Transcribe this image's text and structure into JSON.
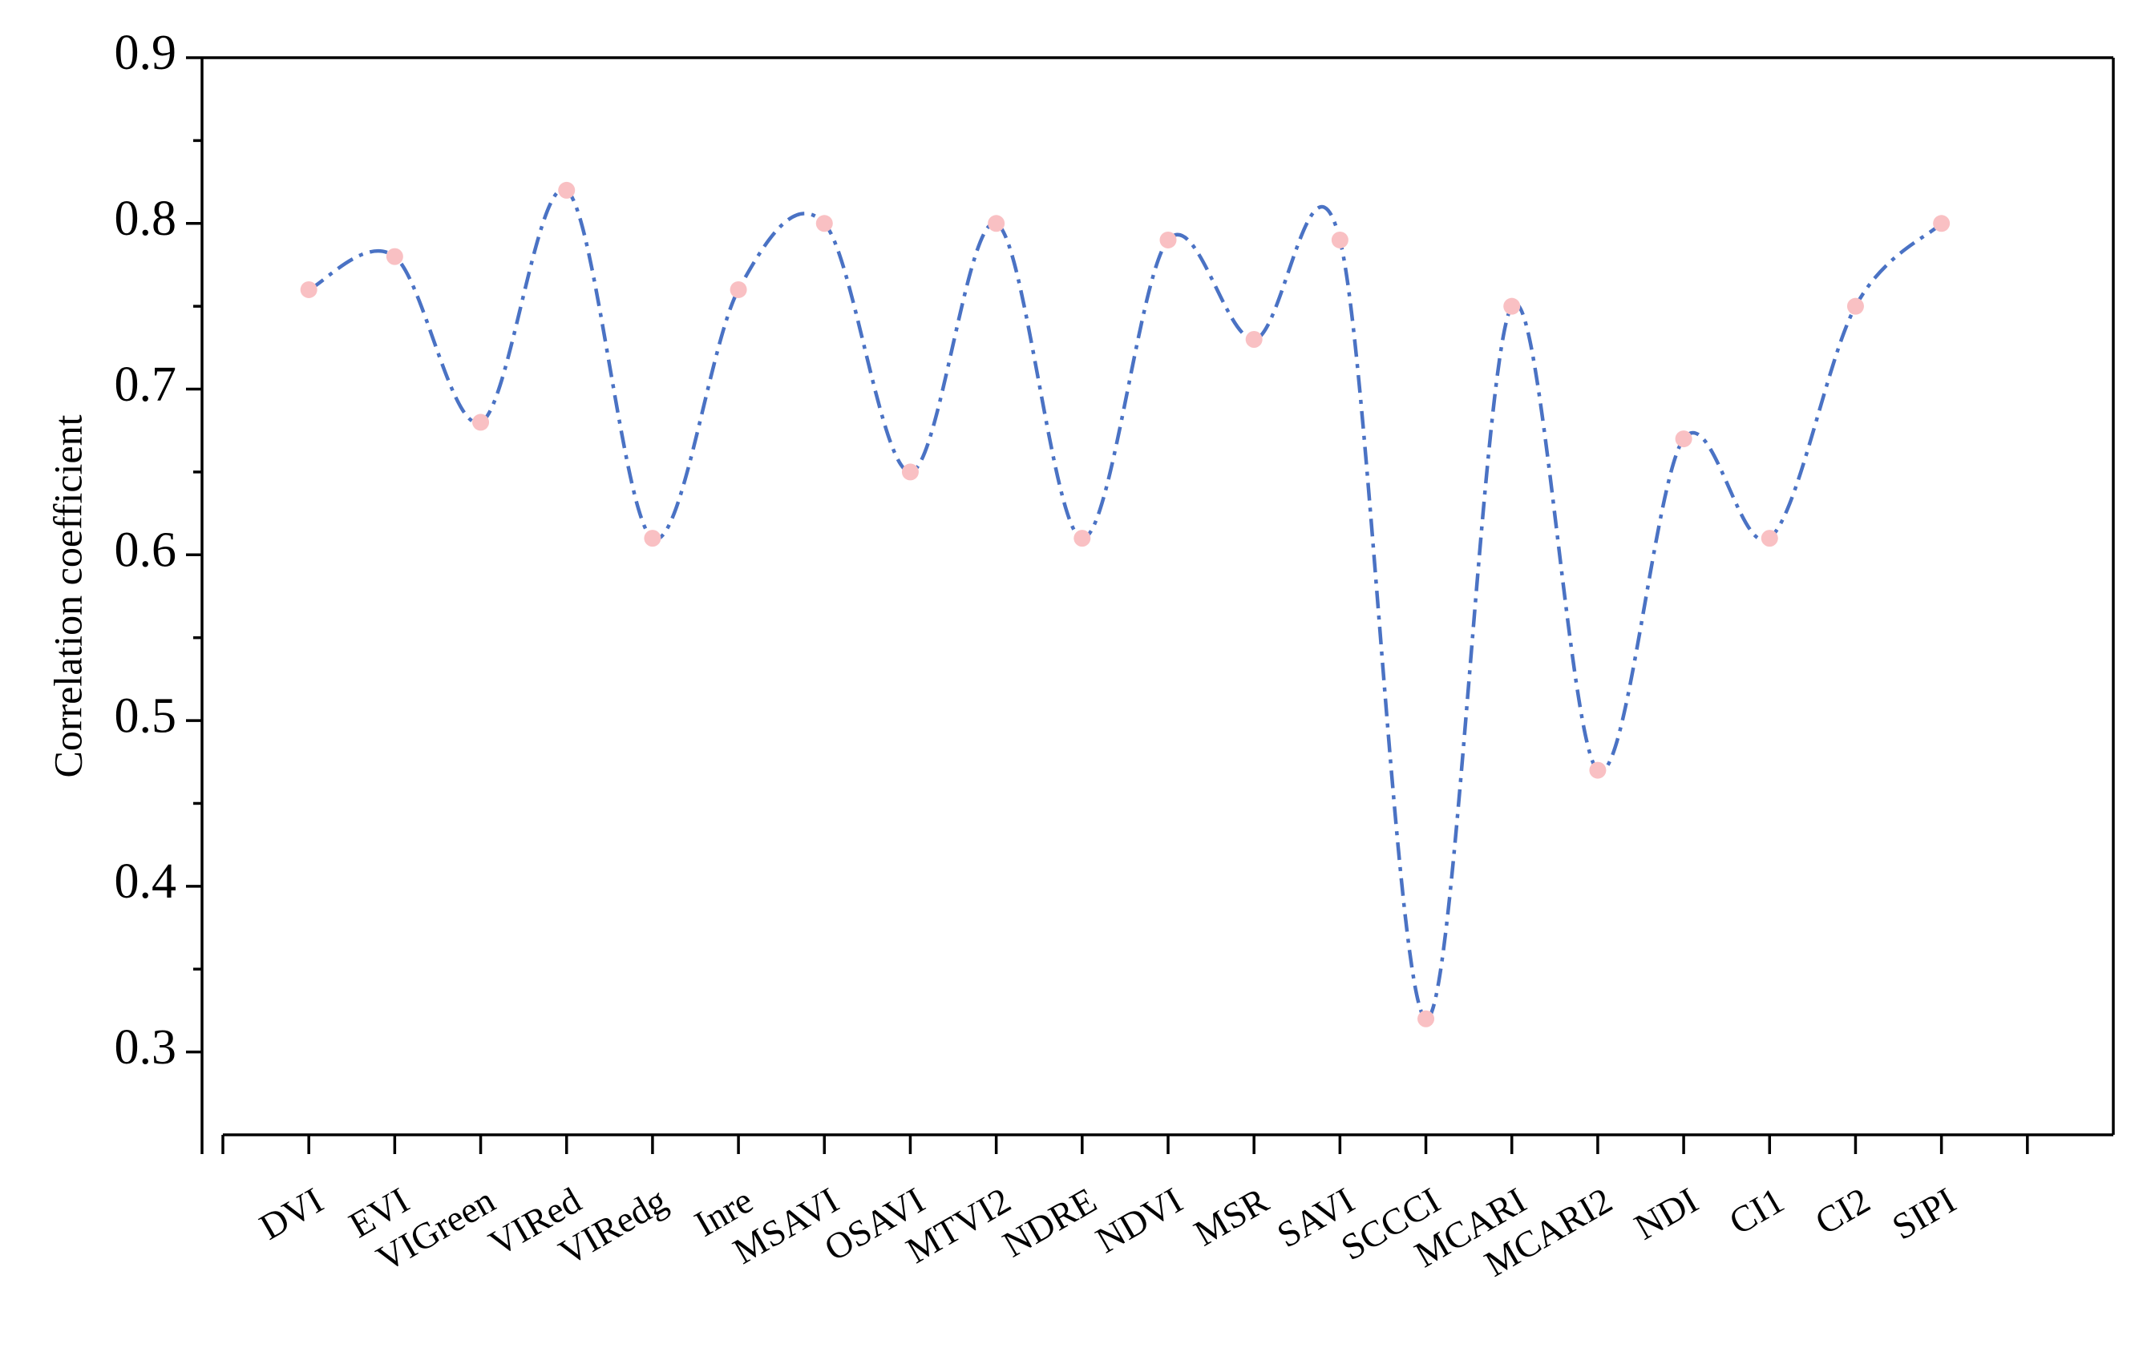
{
  "chart_data": {
    "type": "line",
    "y_label": "Correlation coefficient",
    "categories": [
      "DVI",
      "EVI",
      "VIGreen",
      "VIRed",
      "VIRedg",
      "Inre",
      "MSAVI",
      "OSAVI",
      "MTVI2",
      "NDRE",
      "NDVI",
      "MSR",
      "SAVI",
      "SCCCI",
      "MCARI",
      "MCARI2",
      "NDI",
      "CI1",
      "CI2",
      "SIPI",
      null
    ],
    "values": [
      0.76,
      0.78,
      0.68,
      0.82,
      0.61,
      0.76,
      0.8,
      0.65,
      0.8,
      0.61,
      0.79,
      0.73,
      0.79,
      0.32,
      0.75,
      0.47,
      0.67,
      0.61,
      0.75,
      0.8,
      null
    ],
    "color": "#4a72c4",
    "marker_color": "#f9c0c3",
    "ylim": [
      0.25,
      0.9
    ],
    "yticks": [
      0.3,
      0.4,
      0.5,
      0.6,
      0.7,
      0.8,
      0.9
    ],
    "smooth": true
  }
}
